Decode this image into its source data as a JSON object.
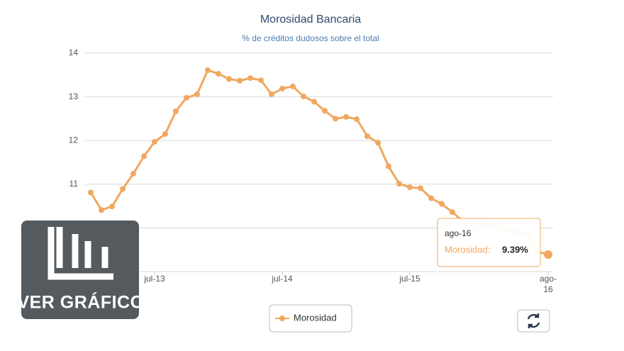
{
  "chart_data": {
    "type": "line",
    "title": "Morosidad Bancaria",
    "subtitle": "% de créditos dudosos sobre el total",
    "categories": [
      null,
      null,
      null,
      null,
      null,
      null,
      "jul-13",
      null,
      null,
      null,
      null,
      null,
      null,
      null,
      null,
      null,
      null,
      null,
      "jul-14",
      null,
      null,
      null,
      null,
      null,
      null,
      null,
      null,
      null,
      null,
      null,
      "jul-15",
      null,
      null,
      null,
      null,
      null,
      null,
      null,
      null,
      null,
      null,
      null,
      null,
      "ago-16"
    ],
    "series": [
      {
        "name": "Morosidad",
        "color": "#f0a860",
        "values": [
          10.81,
          10.41,
          10.49,
          10.89,
          11.24,
          11.64,
          11.97,
          12.15,
          12.67,
          12.98,
          13.06,
          13.61,
          13.53,
          13.41,
          13.37,
          13.43,
          13.38,
          13.06,
          13.19,
          13.24,
          13.01,
          12.89,
          12.68,
          12.5,
          12.54,
          12.49,
          12.1,
          11.95,
          11.41,
          11.01,
          10.93,
          10.91,
          10.68,
          10.55,
          10.36,
          10.15,
          10.1,
          10.08,
          10.02,
          9.95,
          9.9,
          9.85,
          9.45,
          9.39
        ]
      }
    ],
    "ylim": [
      9,
      14
    ],
    "yticks": [
      9,
      10,
      11,
      12,
      13,
      14
    ],
    "grid": true,
    "tooltip": {
      "label": "Morosidad:",
      "value_label": "9.39%"
    }
  },
  "badge_label": "VER GRÁFICO"
}
